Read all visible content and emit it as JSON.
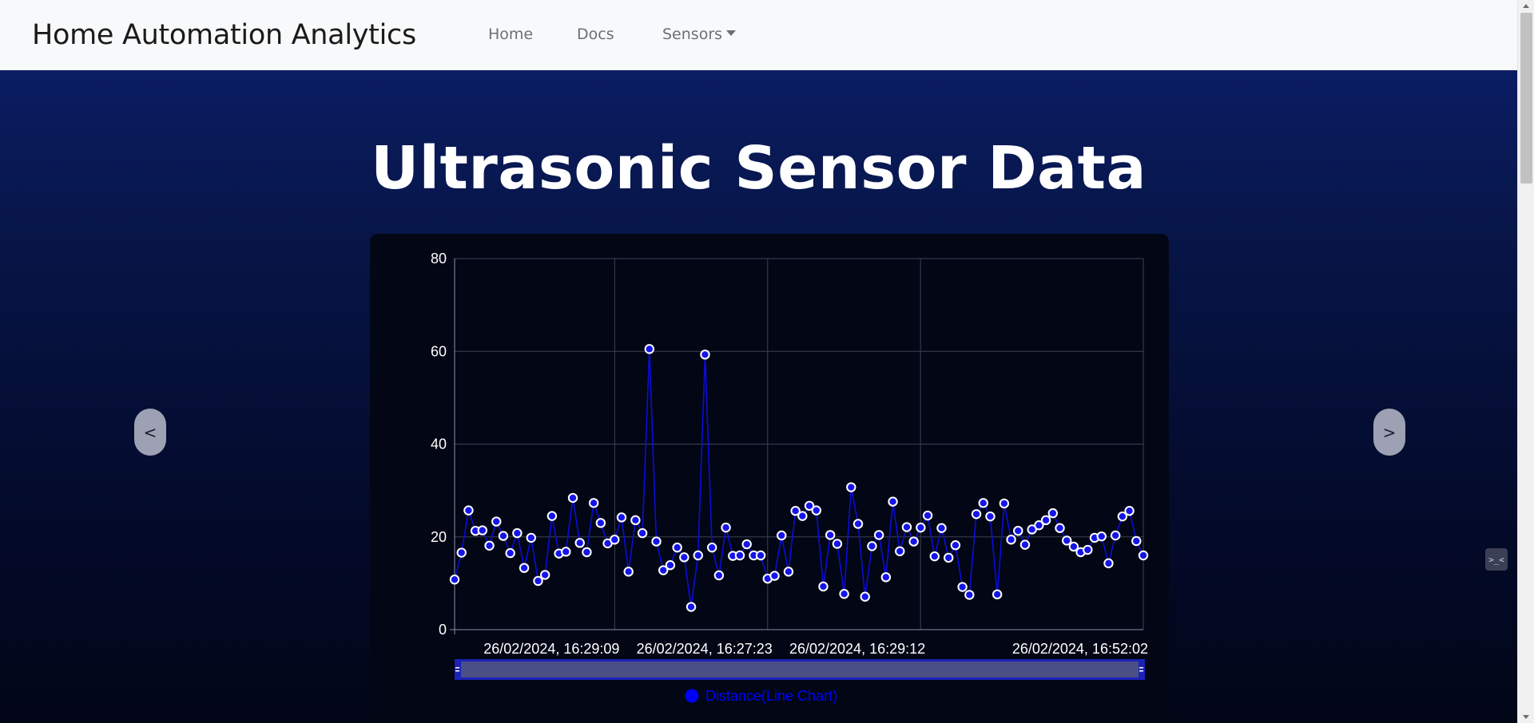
{
  "navbar": {
    "brand": "Home Automation Analytics",
    "links": [
      {
        "label": "Home"
      },
      {
        "label": "Docs"
      },
      {
        "label": "Sensors"
      }
    ]
  },
  "page": {
    "title": "Ultrasonic Sensor Data"
  },
  "carousel": {
    "prev_label": "<",
    "next_label": ">"
  },
  "side_widget": {
    "label": ">_<"
  },
  "colors": {
    "line": "#0c0cdc",
    "point_fill": "#1515e8",
    "point_stroke": "#ffffff",
    "grid": "#3d4254",
    "text": "#ffffff",
    "legend": "#0000ff",
    "slider": "#1c22b8",
    "slider_fill": "#4a4f86"
  },
  "chart_data": {
    "type": "line",
    "title": "",
    "xlabel": "",
    "ylabel": "",
    "ylim": [
      0,
      80
    ],
    "yticks": [
      0,
      20,
      40,
      60,
      80
    ],
    "grid": true,
    "legend_position": "bottom-center",
    "x_tick_labels": [
      "26/02/2024, 16:29:09",
      "26/02/2024, 16:27:23",
      "26/02/2024, 16:29:12",
      "26/02/2024, 16:52:02"
    ],
    "series": [
      {
        "name": "Distance(Line Chart)",
        "values": [
          10.8,
          16.6,
          25.7,
          21.3,
          21.4,
          18.1,
          23.3,
          20.2,
          16.5,
          20.8,
          13.3,
          19.8,
          10.5,
          11.8,
          24.5,
          16.4,
          16.8,
          28.4,
          18.7,
          16.7,
          27.3,
          23.0,
          18.6,
          19.4,
          24.2,
          12.5,
          23.6,
          20.8,
          60.5,
          19.0,
          12.8,
          13.9,
          17.7,
          15.6,
          4.9,
          16.0,
          59.3,
          17.7,
          11.7,
          22.0,
          15.9,
          16.0,
          18.4,
          16.0,
          16.0,
          11.0,
          11.6,
          20.3,
          12.5,
          25.6,
          24.5,
          26.7,
          25.7,
          9.3,
          20.4,
          18.5,
          7.7,
          30.7,
          22.8,
          7.1,
          18.0,
          20.4,
          11.3,
          27.6,
          16.9,
          22.1,
          19.0,
          22.0,
          24.6,
          15.8,
          21.9,
          15.5,
          18.2,
          9.2,
          7.5,
          24.9,
          27.3,
          24.4,
          7.6,
          27.2,
          19.4,
          21.3,
          18.3,
          21.6,
          22.5,
          23.6,
          25.1,
          21.9,
          19.2,
          17.9,
          16.7,
          17.2,
          19.8,
          20.1,
          14.3,
          20.3,
          24.4,
          25.6,
          19.1,
          16.0
        ]
      }
    ]
  }
}
